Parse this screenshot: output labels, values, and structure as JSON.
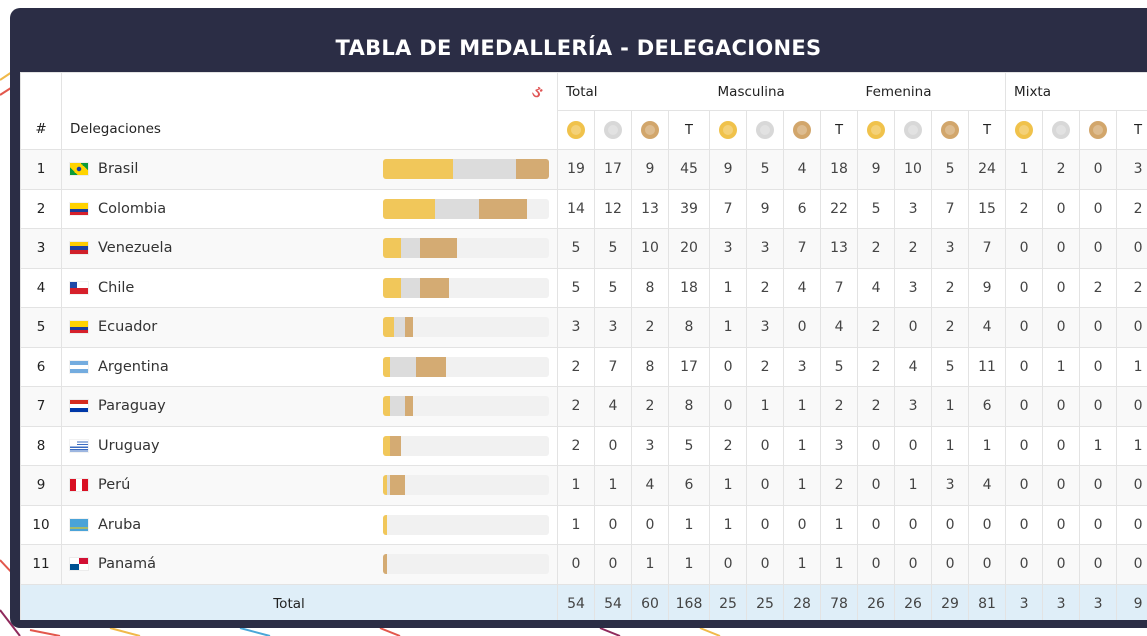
{
  "title": "TABLA DE MEDALLERÍA - DELEGACIONES",
  "headers": {
    "rank": "#",
    "delegations": "Delegaciones",
    "groups": [
      "Total",
      "Masculina",
      "Femenina",
      "Mixta"
    ],
    "total_short": "T"
  },
  "medal_colors": {
    "gold": "#f0c24b",
    "silver": "#d8d8d8",
    "bronze": "#d2a66b"
  },
  "rows": [
    {
      "rank": "1",
      "name": "Brasil",
      "flag": "flag-brasil-icon",
      "vals": [
        "19",
        "17",
        "9",
        "45",
        "9",
        "5",
        "4",
        "18",
        "9",
        "10",
        "5",
        "24",
        "1",
        "2",
        "0",
        "3"
      ]
    },
    {
      "rank": "2",
      "name": "Colombia",
      "flag": "flag-colombia-icon",
      "vals": [
        "14",
        "12",
        "13",
        "39",
        "7",
        "9",
        "6",
        "22",
        "5",
        "3",
        "7",
        "15",
        "2",
        "0",
        "0",
        "2"
      ]
    },
    {
      "rank": "3",
      "name": "Venezuela",
      "flag": "flag-venezuela-icon",
      "vals": [
        "5",
        "5",
        "10",
        "20",
        "3",
        "3",
        "7",
        "13",
        "2",
        "2",
        "3",
        "7",
        "0",
        "0",
        "0",
        "0"
      ]
    },
    {
      "rank": "4",
      "name": "Chile",
      "flag": "flag-chile-icon",
      "vals": [
        "5",
        "5",
        "8",
        "18",
        "1",
        "2",
        "4",
        "7",
        "4",
        "3",
        "2",
        "9",
        "0",
        "0",
        "2",
        "2"
      ]
    },
    {
      "rank": "5",
      "name": "Ecuador",
      "flag": "flag-ecuador-icon",
      "vals": [
        "3",
        "3",
        "2",
        "8",
        "1",
        "3",
        "0",
        "4",
        "2",
        "0",
        "2",
        "4",
        "0",
        "0",
        "0",
        "0"
      ]
    },
    {
      "rank": "6",
      "name": "Argentina",
      "flag": "flag-argentina-icon",
      "vals": [
        "2",
        "7",
        "8",
        "17",
        "0",
        "2",
        "3",
        "5",
        "2",
        "4",
        "5",
        "11",
        "0",
        "1",
        "0",
        "1"
      ]
    },
    {
      "rank": "7",
      "name": "Paraguay",
      "flag": "flag-paraguay-icon",
      "vals": [
        "2",
        "4",
        "2",
        "8",
        "0",
        "1",
        "1",
        "2",
        "2",
        "3",
        "1",
        "6",
        "0",
        "0",
        "0",
        "0"
      ]
    },
    {
      "rank": "8",
      "name": "Uruguay",
      "flag": "flag-uruguay-icon",
      "vals": [
        "2",
        "0",
        "3",
        "5",
        "2",
        "0",
        "1",
        "3",
        "0",
        "0",
        "1",
        "1",
        "0",
        "0",
        "1",
        "1"
      ]
    },
    {
      "rank": "9",
      "name": "Perú",
      "flag": "flag-peru-icon",
      "vals": [
        "1",
        "1",
        "4",
        "6",
        "1",
        "0",
        "1",
        "2",
        "0",
        "1",
        "3",
        "4",
        "0",
        "0",
        "0",
        "0"
      ]
    },
    {
      "rank": "10",
      "name": "Aruba",
      "flag": "flag-aruba-icon",
      "vals": [
        "1",
        "0",
        "0",
        "1",
        "1",
        "0",
        "0",
        "1",
        "0",
        "0",
        "0",
        "0",
        "0",
        "0",
        "0",
        "0"
      ]
    },
    {
      "rank": "11",
      "name": "Panamá",
      "flag": "flag-panama-icon",
      "vals": [
        "0",
        "0",
        "1",
        "1",
        "0",
        "0",
        "1",
        "1",
        "0",
        "0",
        "0",
        "0",
        "0",
        "0",
        "0",
        "0"
      ]
    }
  ],
  "footer": {
    "label": "Total",
    "vals": [
      "54",
      "54",
      "60",
      "168",
      "25",
      "25",
      "28",
      "78",
      "26",
      "26",
      "29",
      "81",
      "3",
      "3",
      "3",
      "9"
    ]
  }
}
